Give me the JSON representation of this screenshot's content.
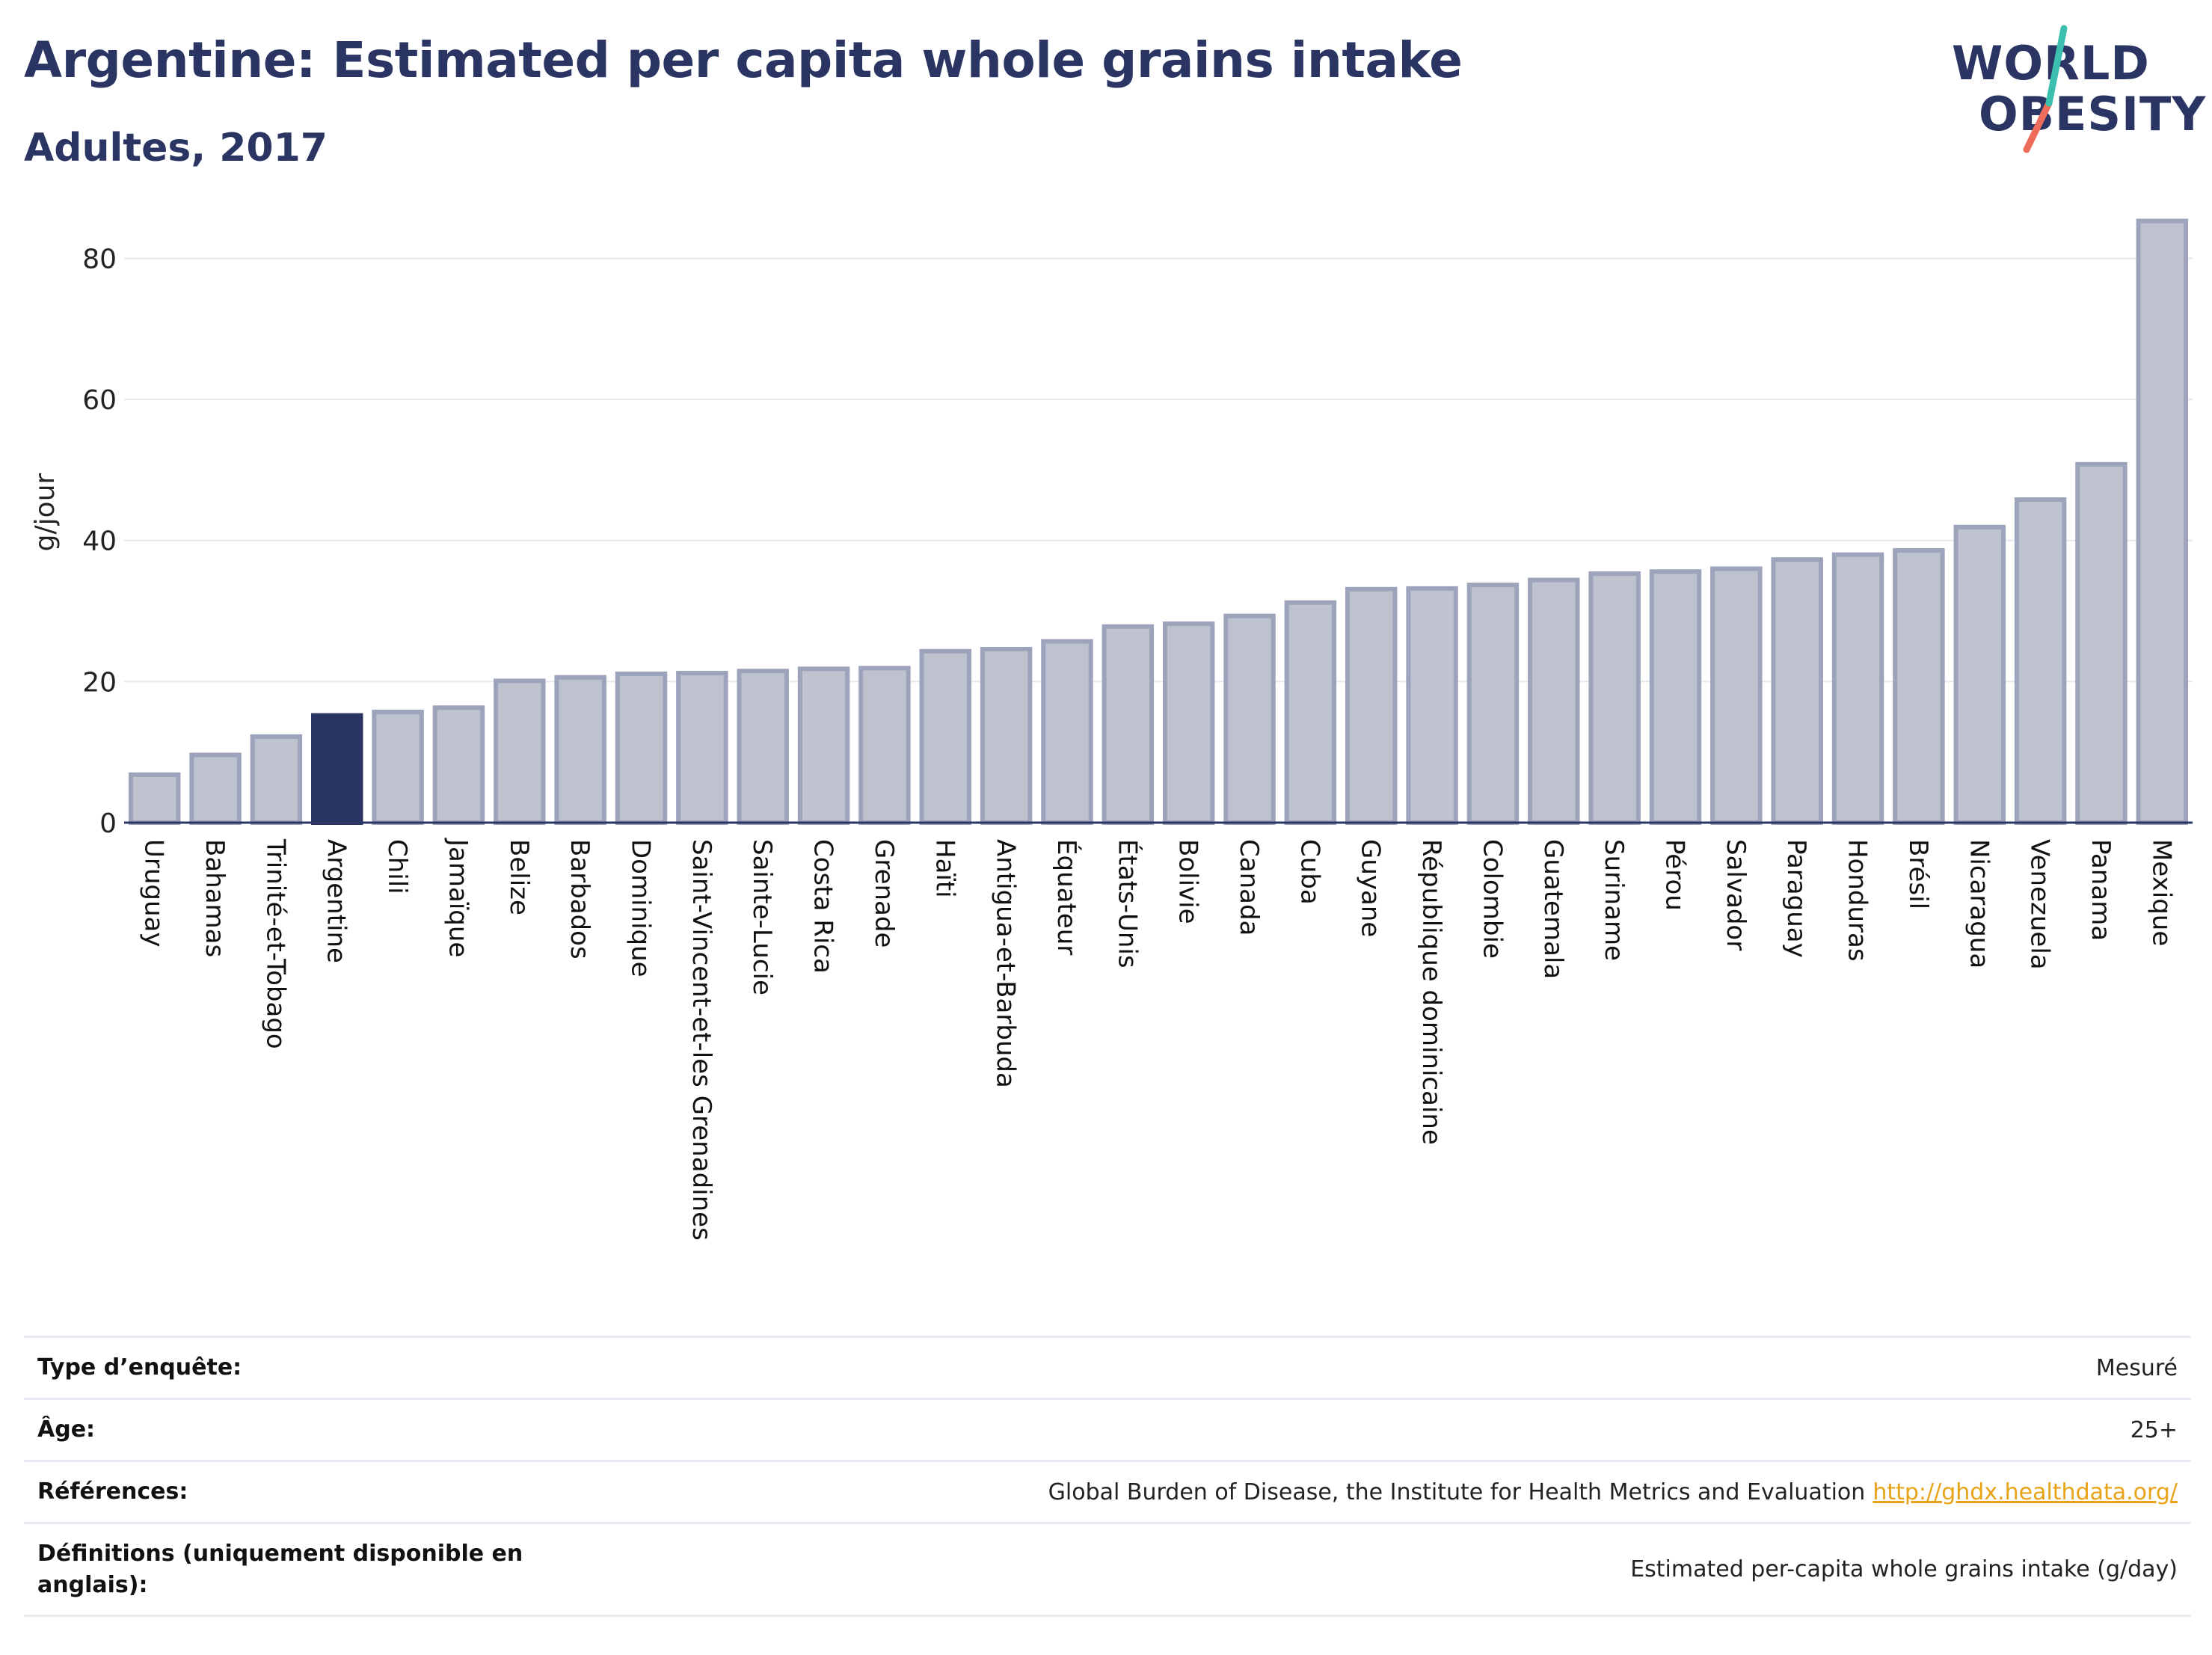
{
  "header": {
    "title": "Argentine: Estimated per capita whole grains intake",
    "subtitle": "Adultes, 2017"
  },
  "logo": {
    "line1": "WORLD",
    "line2": "OBESITY"
  },
  "colors": {
    "highlight": "#2a3563",
    "bar_fill": "#bec2cf",
    "bar_stroke": "#9da3bb",
    "grid": "#e6e8ee",
    "logo_teal": "#3dbfb0",
    "logo_coral": "#ee6c5a",
    "link": "#e8a317"
  },
  "chart_data": {
    "type": "bar",
    "ylabel": "g/jour",
    "ylim": [
      0,
      88
    ],
    "yticks": [
      0,
      20,
      40,
      60,
      80
    ],
    "grid": true,
    "highlight_category": "Argentine",
    "categories": [
      "Uruguay",
      "Bahamas",
      "Trinité-et-Tobago",
      "Argentine",
      "Chili",
      "Jamaïque",
      "Belize",
      "Barbados",
      "Dominique",
      "Saint-Vincent-et-les Grenadines",
      "Sainte-Lucie",
      "Costa Rica",
      "Grenade",
      "Haïti",
      "Antigua-et-Barbuda",
      "Équateur",
      "États-Unis",
      "Bolivie",
      "Canada",
      "Cuba",
      "Guyane",
      "République dominicaine",
      "Colombie",
      "Guatemala",
      "Suriname",
      "Pérou",
      "Salvador",
      "Paraguay",
      "Honduras",
      "Brésil",
      "Nicaragua",
      "Venezuela",
      "Panama",
      "Mexique"
    ],
    "values": [
      6.8,
      9.6,
      12.2,
      15.2,
      15.7,
      16.3,
      20.1,
      20.6,
      21.1,
      21.2,
      21.5,
      21.8,
      21.9,
      24.3,
      24.6,
      25.7,
      27.8,
      28.2,
      29.3,
      31.2,
      33.1,
      33.2,
      33.7,
      34.4,
      35.3,
      35.6,
      36.0,
      37.3,
      38.0,
      38.6,
      41.9,
      45.8,
      50.8,
      85.3
    ]
  },
  "details": {
    "survey_type_label": "Type d’enquête:",
    "survey_type_value": "Mesuré",
    "age_label": "Âge:",
    "age_value": "25+",
    "references_label": "Références:",
    "references_value": "Global Burden of Disease, the Institute for Health Metrics and Evaluation",
    "references_link": "http://ghdx.healthdata.org/",
    "definitions_label": "Définitions (uniquement disponible en anglais):",
    "definitions_value": "Estimated per-capita whole grains intake (g/day)"
  }
}
